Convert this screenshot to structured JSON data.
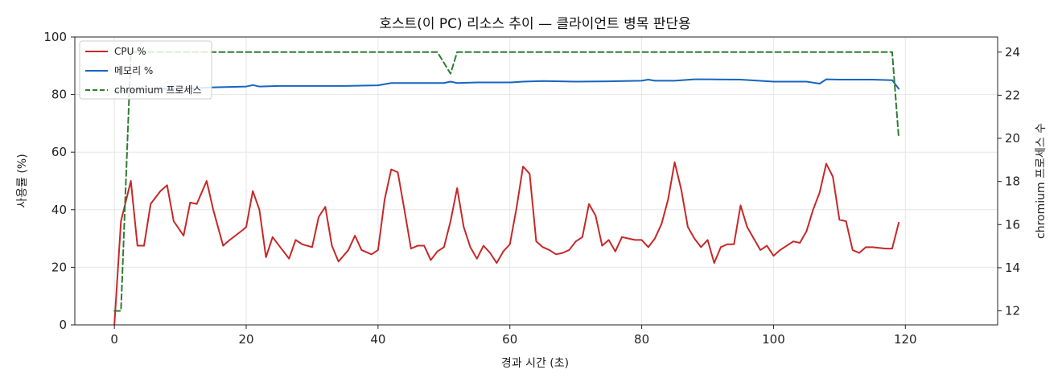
{
  "chart_data": {
    "type": "line",
    "title": "호스트(이 PC) 리소스 추이 — 클라이언트 병목 판단용",
    "xlabel": "경과 시간 (초)",
    "ylabel": "사용률 (%)",
    "y2label": "chromium 프로세스 수",
    "xlim": [
      -6,
      134
    ],
    "ylim": [
      0,
      100
    ],
    "y2lim": [
      11.35,
      24.7
    ],
    "x_ticks": [
      0,
      20,
      40,
      60,
      80,
      100,
      120
    ],
    "y_ticks": [
      0,
      20,
      40,
      60,
      80,
      100
    ],
    "y2_ticks": [
      12,
      14,
      16,
      18,
      20,
      22,
      24
    ],
    "grid": true,
    "legend": "top-left",
    "series": [
      {
        "name": "CPU %",
        "axis": "left",
        "color": "#c62828",
        "style": "solid",
        "points": [
          [
            0,
            0
          ],
          [
            1,
            36
          ],
          [
            2.5,
            50
          ],
          [
            3.5,
            27.5
          ],
          [
            4.5,
            27.5
          ],
          [
            5.5,
            42
          ],
          [
            7,
            46.5
          ],
          [
            8,
            48.5
          ],
          [
            9,
            36
          ],
          [
            10.5,
            31
          ],
          [
            11.5,
            42.5
          ],
          [
            12.5,
            42
          ],
          [
            14,
            50
          ],
          [
            15,
            40
          ],
          [
            16.5,
            27.5
          ],
          [
            17.5,
            29.5
          ],
          [
            19.5,
            33
          ],
          [
            20,
            34
          ],
          [
            21,
            46.5
          ],
          [
            22,
            40
          ],
          [
            23,
            23.5
          ],
          [
            24,
            30.5
          ],
          [
            25.5,
            26
          ],
          [
            26.5,
            23
          ],
          [
            27.5,
            29.5
          ],
          [
            28.5,
            28
          ],
          [
            30,
            27
          ],
          [
            31,
            37.5
          ],
          [
            32,
            41
          ],
          [
            33,
            27.5
          ],
          [
            34,
            22
          ],
          [
            35.5,
            26
          ],
          [
            36.5,
            31
          ],
          [
            37.5,
            26
          ],
          [
            39,
            24.5
          ],
          [
            40,
            26
          ],
          [
            41,
            43.5
          ],
          [
            42,
            54
          ],
          [
            43,
            53
          ],
          [
            44,
            40
          ],
          [
            45,
            26.5
          ],
          [
            46,
            27.5
          ],
          [
            47,
            27.5
          ],
          [
            48,
            22.5
          ],
          [
            49,
            25.5
          ],
          [
            50,
            27
          ],
          [
            51,
            36
          ],
          [
            52,
            47.5
          ],
          [
            53,
            34
          ],
          [
            54,
            27
          ],
          [
            55,
            23
          ],
          [
            56,
            27.5
          ],
          [
            57,
            25
          ],
          [
            58,
            21.5
          ],
          [
            59,
            25.5
          ],
          [
            60,
            28
          ],
          [
            61,
            40.5
          ],
          [
            62,
            55
          ],
          [
            63,
            52.5
          ],
          [
            64,
            29
          ],
          [
            65,
            27
          ],
          [
            66,
            26
          ],
          [
            67,
            24.5
          ],
          [
            68,
            25
          ],
          [
            69,
            26
          ],
          [
            70,
            29
          ],
          [
            71,
            30.5
          ],
          [
            72,
            42
          ],
          [
            73,
            38
          ],
          [
            74,
            27.5
          ],
          [
            75,
            29.5
          ],
          [
            76,
            25.5
          ],
          [
            77,
            30.5
          ],
          [
            78,
            30
          ],
          [
            79,
            29.5
          ],
          [
            80,
            29.5
          ],
          [
            81,
            27
          ],
          [
            82,
            30
          ],
          [
            83,
            35
          ],
          [
            84,
            43.5
          ],
          [
            85,
            56.5
          ],
          [
            86,
            47
          ],
          [
            87,
            34
          ],
          [
            88,
            30
          ],
          [
            89,
            27
          ],
          [
            90,
            29.5
          ],
          [
            91,
            21.5
          ],
          [
            92,
            27
          ],
          [
            93,
            28
          ],
          [
            94,
            28
          ],
          [
            95,
            41.5
          ],
          [
            96,
            34
          ],
          [
            97,
            30
          ],
          [
            98,
            26
          ],
          [
            99,
            27.5
          ],
          [
            100,
            24
          ],
          [
            101,
            26
          ],
          [
            102,
            27.5
          ],
          [
            103,
            29
          ],
          [
            104,
            28.5
          ],
          [
            105,
            32.5
          ],
          [
            106,
            40
          ],
          [
            107,
            46
          ],
          [
            108,
            56
          ],
          [
            109,
            51.5
          ],
          [
            110,
            36.5
          ],
          [
            111,
            36
          ],
          [
            112,
            26
          ],
          [
            113,
            25
          ],
          [
            114,
            27
          ],
          [
            115,
            27
          ],
          [
            117,
            26.5
          ],
          [
            118,
            26.5
          ],
          [
            119,
            35.5
          ]
        ]
      },
      {
        "name": "메모리 %",
        "axis": "left",
        "color": "#1565c0",
        "style": "solid",
        "points": [
          [
            0,
            81
          ],
          [
            5,
            82
          ],
          [
            10,
            82
          ],
          [
            15,
            82.5
          ],
          [
            20,
            82.8
          ],
          [
            21,
            83.3
          ],
          [
            22,
            82.8
          ],
          [
            25,
            83
          ],
          [
            30,
            83
          ],
          [
            35,
            83
          ],
          [
            40,
            83.2
          ],
          [
            42,
            84
          ],
          [
            45,
            84
          ],
          [
            48,
            84
          ],
          [
            50,
            84
          ],
          [
            51,
            84.5
          ],
          [
            52,
            84
          ],
          [
            55,
            84.2
          ],
          [
            60,
            84.2
          ],
          [
            62,
            84.5
          ],
          [
            65,
            84.7
          ],
          [
            70,
            84.5
          ],
          [
            75,
            84.6
          ],
          [
            80,
            84.8
          ],
          [
            81,
            85.2
          ],
          [
            82,
            84.8
          ],
          [
            85,
            84.8
          ],
          [
            88,
            85.3
          ],
          [
            90,
            85.3
          ],
          [
            95,
            85.2
          ],
          [
            100,
            84.5
          ],
          [
            102,
            84.5
          ],
          [
            105,
            84.5
          ],
          [
            107,
            83.8
          ],
          [
            108,
            85.3
          ],
          [
            110,
            85.2
          ],
          [
            115,
            85.2
          ],
          [
            118,
            85
          ],
          [
            119,
            82
          ]
        ]
      },
      {
        "name": "chromium 프로세스",
        "axis": "right",
        "color": "#2e7d32",
        "style": "dashed",
        "points": [
          [
            0,
            12
          ],
          [
            1,
            12
          ],
          [
            2.5,
            24
          ],
          [
            49,
            24
          ],
          [
            51,
            23
          ],
          [
            52,
            24
          ],
          [
            118,
            24
          ],
          [
            119,
            20
          ]
        ]
      }
    ]
  }
}
